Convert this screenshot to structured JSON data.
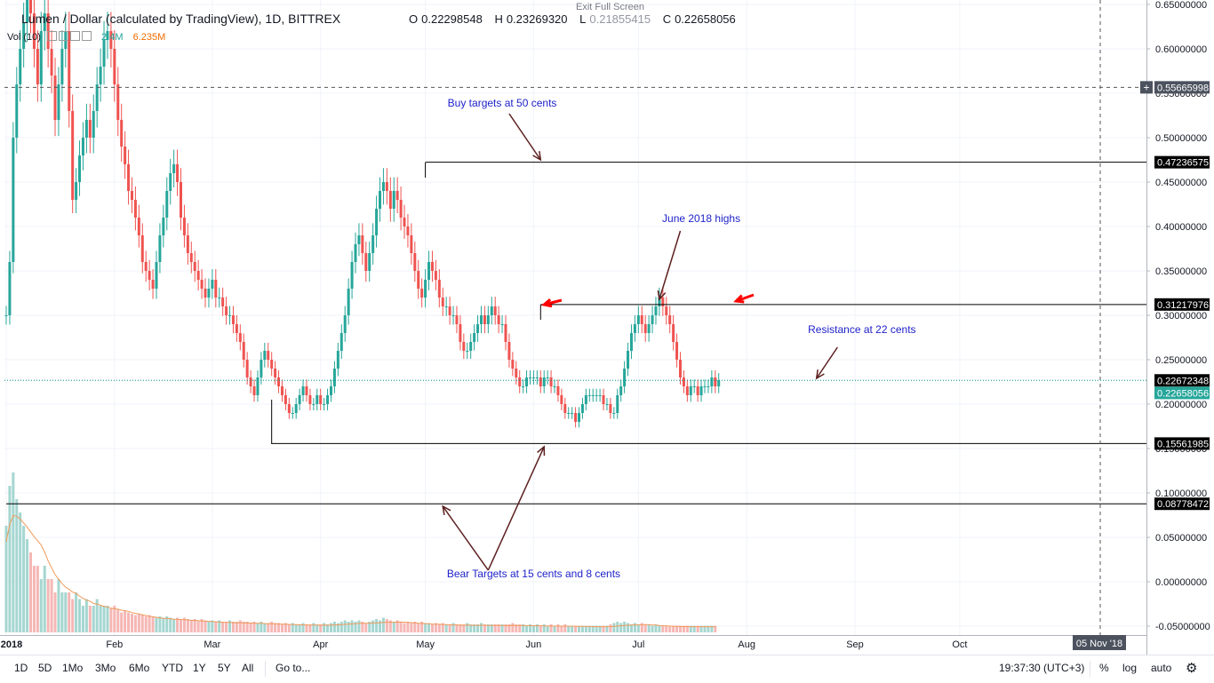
{
  "header": {
    "title": "Lumen / Dollar (calculated by TradingView), 1D, BITTREX",
    "exit_full_screen": "Exit Full Screen",
    "ohlc": {
      "o_label": "O",
      "o": "0.22298548",
      "h_label": "H",
      "h": "0.23269320",
      "l_label": "L",
      "l": "0.21855415",
      "c_label": "C",
      "c": "0.22658056"
    },
    "volume": {
      "label": "Vol (10)",
      "value1": "2.4M",
      "value2": "6.235M"
    }
  },
  "chart_data": {
    "type": "candlestick",
    "title": "Lumen / Dollar (calculated by TradingView), 1D, BITTREX",
    "ylim": [
      -0.06,
      0.655
    ],
    "y_ticks": [
      "0.65000000",
      "0.60000000",
      "0.55000000",
      "0.50000000",
      "0.45000000",
      "0.40000000",
      "0.35000000",
      "0.30000000",
      "0.25000000",
      "0.20000000",
      "0.15000000",
      "0.10000000",
      "0.05000000",
      "0.00000000",
      "-0.05000000"
    ],
    "x_ticks": [
      "2018",
      "Feb",
      "Mar",
      "Apr",
      "May",
      "Jun",
      "Jul",
      "Aug",
      "Sep",
      "Oct"
    ],
    "crosshair_x_label": "05 Nov '18",
    "price_labels": [
      {
        "value": 0.55665998,
        "text": "0.55665998",
        "style": "crosshair"
      },
      {
        "value": 0.47236575,
        "text": "0.47236575",
        "style": "level"
      },
      {
        "value": 0.31217976,
        "text": "0.31217976",
        "style": "level"
      },
      {
        "value": 0.22672348,
        "text": "0.22672348",
        "style": "level"
      },
      {
        "value": 0.22658056,
        "text": "0.22658056",
        "style": "last"
      },
      {
        "value": 0.15561985,
        "text": "0.15561985",
        "style": "level"
      },
      {
        "value": 0.08778472,
        "text": "0.08778472",
        "style": "level"
      }
    ],
    "horizontal_lines": [
      {
        "value": 0.47236575,
        "from_day": 120,
        "to": "end"
      },
      {
        "value": 0.31217976,
        "from_day": 153,
        "to": "end"
      },
      {
        "value": 0.15561985,
        "from_day": 76,
        "to": "end"
      },
      {
        "value": 0.08778472,
        "from_day": 0,
        "to": "end"
      }
    ],
    "annotations": [
      {
        "text": "Buy targets at 50 cents",
        "x_day": 142,
        "y": 0.535
      },
      {
        "text": "June 2018 highs",
        "x_day": 199,
        "y": 0.405
      },
      {
        "text": "Resistance at 22 cents",
        "x_day": 245,
        "y": 0.28
      },
      {
        "text": "Bear Targets at 15 cents and 8 cents",
        "x_day": 151,
        "y": 0.005
      }
    ],
    "arrows": [
      {
        "from": [
          144,
          0.527
        ],
        "to": [
          153,
          0.475
        ],
        "color": "#5d1f1f"
      },
      {
        "from": [
          193,
          0.395
        ],
        "to": [
          187,
          0.318
        ],
        "color": "#5d1f1f"
      },
      {
        "from": [
          238,
          0.264
        ],
        "to": [
          232,
          0.229
        ],
        "color": "#5d1f1f"
      },
      {
        "from": [
          138,
          0.013
        ],
        "to": [
          154,
          0.152
        ],
        "color": "#5d1f1f"
      },
      {
        "from": [
          138,
          0.013
        ],
        "to": [
          125,
          0.085
        ],
        "color": "#5d1f1f"
      },
      {
        "from": [
          159,
          0.317
        ],
        "to": [
          154,
          0.312
        ],
        "color": "#ff0000",
        "style": "marker"
      },
      {
        "from": [
          214,
          0.323
        ],
        "to": [
          209,
          0.316
        ],
        "color": "#ff0000",
        "style": "marker"
      }
    ],
    "closes": [
      0.3,
      0.36,
      0.5,
      0.56,
      0.6,
      0.63,
      0.66,
      0.64,
      0.6,
      0.56,
      0.62,
      0.64,
      0.6,
      0.57,
      0.52,
      0.56,
      0.6,
      0.62,
      0.53,
      0.43,
      0.45,
      0.48,
      0.5,
      0.52,
      0.5,
      0.53,
      0.56,
      0.58,
      0.61,
      0.62,
      0.6,
      0.56,
      0.52,
      0.49,
      0.47,
      0.44,
      0.43,
      0.41,
      0.39,
      0.36,
      0.35,
      0.34,
      0.33,
      0.36,
      0.39,
      0.41,
      0.44,
      0.46,
      0.47,
      0.45,
      0.41,
      0.39,
      0.37,
      0.36,
      0.35,
      0.34,
      0.33,
      0.32,
      0.33,
      0.34,
      0.32,
      0.32,
      0.31,
      0.3,
      0.3,
      0.29,
      0.28,
      0.27,
      0.25,
      0.23,
      0.22,
      0.21,
      0.23,
      0.25,
      0.26,
      0.25,
      0.24,
      0.23,
      0.22,
      0.21,
      0.2,
      0.19,
      0.19,
      0.2,
      0.21,
      0.22,
      0.21,
      0.2,
      0.2,
      0.21,
      0.2,
      0.2,
      0.21,
      0.22,
      0.24,
      0.26,
      0.28,
      0.3,
      0.33,
      0.36,
      0.38,
      0.39,
      0.37,
      0.35,
      0.37,
      0.39,
      0.42,
      0.44,
      0.45,
      0.44,
      0.42,
      0.44,
      0.43,
      0.41,
      0.4,
      0.39,
      0.37,
      0.35,
      0.33,
      0.32,
      0.34,
      0.36,
      0.35,
      0.34,
      0.32,
      0.31,
      0.31,
      0.3,
      0.3,
      0.29,
      0.27,
      0.26,
      0.26,
      0.27,
      0.28,
      0.29,
      0.3,
      0.29,
      0.3,
      0.31,
      0.3,
      0.29,
      0.29,
      0.27,
      0.25,
      0.24,
      0.23,
      0.22,
      0.22,
      0.23,
      0.23,
      0.23,
      0.23,
      0.22,
      0.23,
      0.23,
      0.22,
      0.22,
      0.21,
      0.2,
      0.19,
      0.19,
      0.19,
      0.18,
      0.19,
      0.2,
      0.21,
      0.21,
      0.21,
      0.21,
      0.21,
      0.2,
      0.2,
      0.19,
      0.19,
      0.21,
      0.22,
      0.24,
      0.26,
      0.28,
      0.29,
      0.3,
      0.29,
      0.28,
      0.29,
      0.3,
      0.31,
      0.32,
      0.31,
      0.3,
      0.29,
      0.27,
      0.25,
      0.23,
      0.22,
      0.21,
      0.22,
      0.22,
      0.21,
      0.22,
      0.22,
      0.22,
      0.23,
      0.22,
      0.227
    ],
    "volumes": [
      0.08,
      0.11,
      0.12,
      0.1,
      0.09,
      0.08,
      0.07,
      0.06,
      0.05,
      0.05,
      0.04,
      0.05,
      0.04,
      0.04,
      0.03,
      0.04,
      0.03,
      0.03,
      0.03,
      0.025,
      0.03,
      0.025,
      0.02,
      0.025,
      0.02,
      0.02,
      0.025,
      0.02,
      0.02,
      0.02,
      0.018,
      0.02,
      0.017,
      0.015,
      0.016,
      0.015,
      0.014,
      0.013,
      0.014,
      0.013,
      0.012,
      0.013,
      0.012,
      0.011,
      0.012,
      0.011,
      0.012,
      0.011,
      0.01,
      0.011,
      0.01,
      0.011,
      0.01,
      0.009,
      0.01,
      0.009,
      0.01,
      0.009,
      0.008,
      0.009,
      0.008,
      0.009,
      0.008,
      0.008,
      0.009,
      0.008,
      0.008,
      0.009,
      0.008,
      0.008,
      0.007,
      0.008,
      0.007,
      0.008,
      0.007,
      0.007,
      0.008,
      0.007,
      0.007,
      0.006,
      0.007,
      0.006,
      0.007,
      0.006,
      0.006,
      0.007,
      0.006,
      0.006,
      0.007,
      0.006,
      0.006,
      0.007,
      0.006,
      0.007,
      0.008,
      0.007,
      0.008,
      0.009,
      0.008,
      0.009,
      0.008,
      0.009,
      0.008,
      0.007,
      0.008,
      0.009,
      0.01,
      0.009,
      0.011,
      0.01,
      0.009,
      0.008,
      0.009,
      0.008,
      0.007,
      0.008,
      0.007,
      0.008,
      0.007,
      0.008,
      0.007,
      0.007,
      0.006,
      0.007,
      0.006,
      0.007,
      0.006,
      0.006,
      0.007,
      0.006,
      0.006,
      0.006,
      0.007,
      0.006,
      0.006,
      0.006,
      0.007,
      0.006,
      0.006,
      0.006,
      0.006,
      0.006,
      0.006,
      0.006,
      0.006,
      0.007,
      0.006,
      0.006,
      0.006,
      0.005,
      0.006,
      0.005,
      0.006,
      0.005,
      0.006,
      0.005,
      0.006,
      0.005,
      0.006,
      0.005,
      0.006,
      0.005,
      0.005,
      0.005,
      0.005,
      0.005,
      0.005,
      0.005,
      0.005,
      0.005,
      0.005,
      0.005,
      0.005,
      0.006,
      0.007,
      0.008,
      0.007,
      0.008,
      0.007,
      0.006,
      0.007,
      0.006,
      0.007,
      0.006,
      0.006,
      0.005,
      0.006,
      0.005,
      0.005,
      0.005,
      0.005,
      0.005,
      0.005,
      0.005,
      0.005,
      0.005,
      0.005,
      0.005,
      0.005,
      0.005,
      0.005,
      0.005,
      0.005,
      0.005
    ]
  },
  "bottom_bar": {
    "ranges": [
      "1D",
      "5D",
      "1Mo",
      "3Mo",
      "6Mo",
      "YTD",
      "1Y",
      "5Y",
      "All"
    ],
    "goto": "Go to...",
    "clock": "19:37:30 (UTC+3)",
    "percent": "%",
    "log": "log",
    "auto": "auto",
    "gear": "gear-icon"
  },
  "colors": {
    "up": "#26a69a",
    "down": "#ef5350",
    "line": "#131722",
    "annotation_text": "#1f22c9",
    "arrow": "#5d1f1f",
    "marker": "#ff0000",
    "last_price": "#26a69a",
    "price_line": "#009688",
    "ma": "#ef9a5a"
  }
}
